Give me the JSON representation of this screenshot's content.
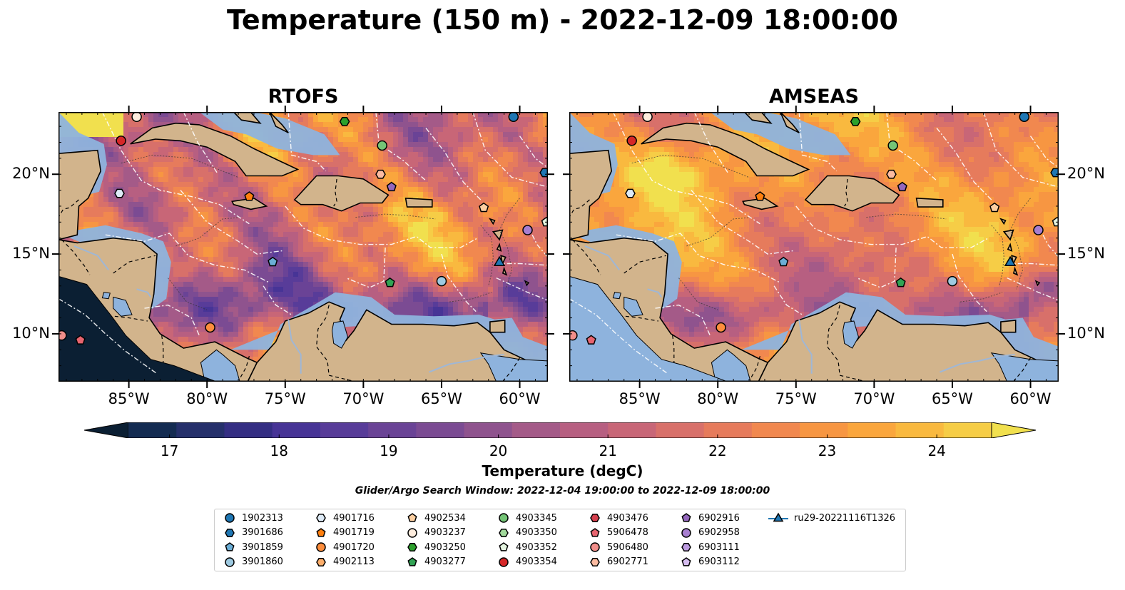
{
  "title": "Temperature (150 m) - 2022-12-09 18:00:00",
  "panels": [
    {
      "id": "rtofs",
      "title": "RTOFS",
      "scheme": "rtofs"
    },
    {
      "id": "amseas",
      "title": "AMSEAS",
      "scheme": "amseas"
    }
  ],
  "lon_ticks": [
    "85°W",
    "80°W",
    "75°W",
    "70°W",
    "65°W",
    "60°W"
  ],
  "lon_tick_values": [
    -85,
    -80,
    -75,
    -70,
    -65,
    -60
  ],
  "lat_ticks": [
    "20°N",
    "15°N",
    "10°N"
  ],
  "lat_tick_values": [
    20,
    15,
    10
  ],
  "map_extent": {
    "lon_min": -89.5,
    "lon_max": -58.2,
    "lat_min": 7.0,
    "lat_max": 23.9
  },
  "colorbar": {
    "label": "Temperature (degC)",
    "tick_labels": [
      "17",
      "18",
      "19",
      "20",
      "21",
      "22",
      "23",
      "24"
    ],
    "min": 16.75,
    "max": 24.5,
    "colors": [
      "#0b1f33",
      "#142c52",
      "#25306b",
      "#342e83",
      "#473496",
      "#583c99",
      "#6a4396",
      "#7b4b93",
      "#8f538e",
      "#a45a88",
      "#b75f81",
      "#c86677",
      "#d8706a",
      "#e67b5c",
      "#f1884f",
      "#f79642",
      "#faa63d",
      "#f9b93f",
      "#f6cd46",
      "#f1e04e"
    ]
  },
  "search_window": "Glider/Argo Search Window: 2022-12-04 19:00:00 to 2022-12-09 18:00:00",
  "legend": {
    "items": [
      {
        "label": "1902313",
        "marker": "circle",
        "color": "#1f77b4"
      },
      {
        "label": "3901686",
        "marker": "hexagon",
        "color": "#1f77b4"
      },
      {
        "label": "3901859",
        "marker": "pentagon",
        "color": "#6baed6"
      },
      {
        "label": "3901860",
        "marker": "circle",
        "color": "#9ecae1"
      },
      {
        "label": "4901716",
        "marker": "hexagon",
        "color": "#deebf7"
      },
      {
        "label": "4901719",
        "marker": "pentagon",
        "color": "#ff7f0e"
      },
      {
        "label": "4901720",
        "marker": "circle",
        "color": "#fd8d3c"
      },
      {
        "label": "4902113",
        "marker": "hexagon",
        "color": "#fdae6b"
      },
      {
        "label": "4902534",
        "marker": "pentagon",
        "color": "#fdd0a2"
      },
      {
        "label": "4903237",
        "marker": "circle",
        "color": "#feedde"
      },
      {
        "label": "4903250",
        "marker": "hexagon",
        "color": "#2ca02c"
      },
      {
        "label": "4903277",
        "marker": "pentagon",
        "color": "#31a354"
      },
      {
        "label": "4903345",
        "marker": "circle",
        "color": "#74c476"
      },
      {
        "label": "4903350",
        "marker": "hexagon",
        "color": "#a1d99b"
      },
      {
        "label": "4903352",
        "marker": "pentagon",
        "color": "#e5f5e0"
      },
      {
        "label": "4903354",
        "marker": "circle",
        "color": "#d62728"
      },
      {
        "label": "4903476",
        "marker": "hexagon",
        "color": "#d6404e"
      },
      {
        "label": "5906478",
        "marker": "pentagon",
        "color": "#e7646f"
      },
      {
        "label": "5906480",
        "marker": "circle",
        "color": "#f28e8a"
      },
      {
        "label": "6902771",
        "marker": "hexagon",
        "color": "#fcbba1"
      },
      {
        "label": "6902916",
        "marker": "pentagon",
        "color": "#9467bd"
      },
      {
        "label": "6902958",
        "marker": "circle",
        "color": "#a77ed0"
      },
      {
        "label": "6903111",
        "marker": "hexagon",
        "color": "#bc9ae0"
      },
      {
        "label": "6903112",
        "marker": "pentagon",
        "color": "#d6bdf0"
      },
      {
        "label": "ru29-20221116T1326",
        "marker": "triangle-line",
        "color": "#1f77b4"
      }
    ]
  },
  "floats": [
    {
      "label": "1902313",
      "lon": -60.4,
      "lat": 23.6
    },
    {
      "label": "3901686",
      "lon": -58.4,
      "lat": 20.1
    },
    {
      "label": "3901859",
      "lon": -75.8,
      "lat": 14.5
    },
    {
      "label": "3901860",
      "lon": -65.0,
      "lat": 13.3
    },
    {
      "label": "4901716",
      "lon": -85.6,
      "lat": 18.8
    },
    {
      "label": "4901719",
      "lon": -77.3,
      "lat": 18.6
    },
    {
      "label": "4901720",
      "lon": -79.8,
      "lat": 10.4
    },
    {
      "label": "4902534",
      "lon": -62.3,
      "lat": 17.9
    },
    {
      "label": "4903237",
      "lon": -84.5,
      "lat": 23.6
    },
    {
      "label": "4903277",
      "lon": -68.3,
      "lat": 13.2
    },
    {
      "label": "4903345",
      "lon": -68.8,
      "lat": 21.8
    },
    {
      "label": "4903352",
      "lon": -58.3,
      "lat": 17.0
    },
    {
      "label": "4903354",
      "lon": -85.5,
      "lat": 22.1
    },
    {
      "label": "5906478",
      "lon": -88.1,
      "lat": 9.6
    },
    {
      "label": "5906480",
      "lon": -89.3,
      "lat": 9.9
    },
    {
      "label": "6902771",
      "lon": -68.9,
      "lat": 20.0
    },
    {
      "label": "6902916",
      "lon": -68.2,
      "lat": 19.2
    },
    {
      "label": "6902958",
      "lon": -59.5,
      "lat": 16.5
    },
    {
      "label": "4903250",
      "lon": -71.2,
      "lat": 23.3
    }
  ],
  "glider": {
    "label": "ru29-20221116T1326",
    "lon": -61.3,
    "lat": 14.5
  }
}
